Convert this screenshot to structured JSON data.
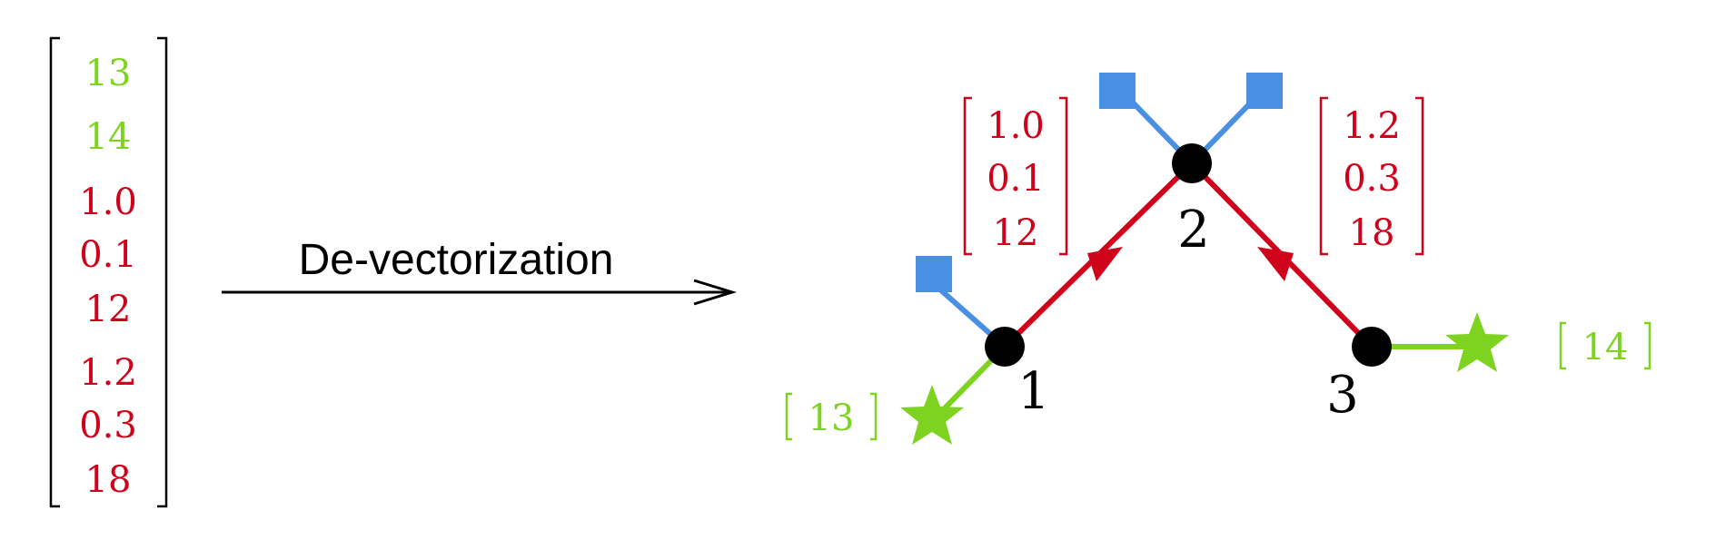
{
  "colors": {
    "green": "#7ed321",
    "red": "#d0021b",
    "blue": "#4a90e2",
    "black": "#000000"
  },
  "vector": {
    "entries": [
      {
        "value": "13",
        "color": "green"
      },
      {
        "value": "14",
        "color": "green"
      },
      {
        "value": "1.0",
        "color": "red"
      },
      {
        "value": "0.1",
        "color": "red"
      },
      {
        "value": "12",
        "color": "red"
      },
      {
        "value": "1.2",
        "color": "red"
      },
      {
        "value": "0.3",
        "color": "red"
      },
      {
        "value": "18",
        "color": "red"
      }
    ]
  },
  "arrow": {
    "label": "De-vectorization"
  },
  "graph": {
    "nodes": [
      {
        "label": "1"
      },
      {
        "label": "2"
      },
      {
        "label": "3"
      }
    ],
    "edge_12": {
      "values": [
        "1.0",
        "0.1",
        "12"
      ]
    },
    "edge_32": {
      "values": [
        "1.2",
        "0.3",
        "18"
      ]
    },
    "star_node1": {
      "value": "13"
    },
    "star_node3": {
      "value": "14"
    },
    "square_icons": [
      "square-icon",
      "square-icon",
      "square-icon"
    ],
    "star_icons": [
      "star-icon",
      "star-icon"
    ]
  }
}
